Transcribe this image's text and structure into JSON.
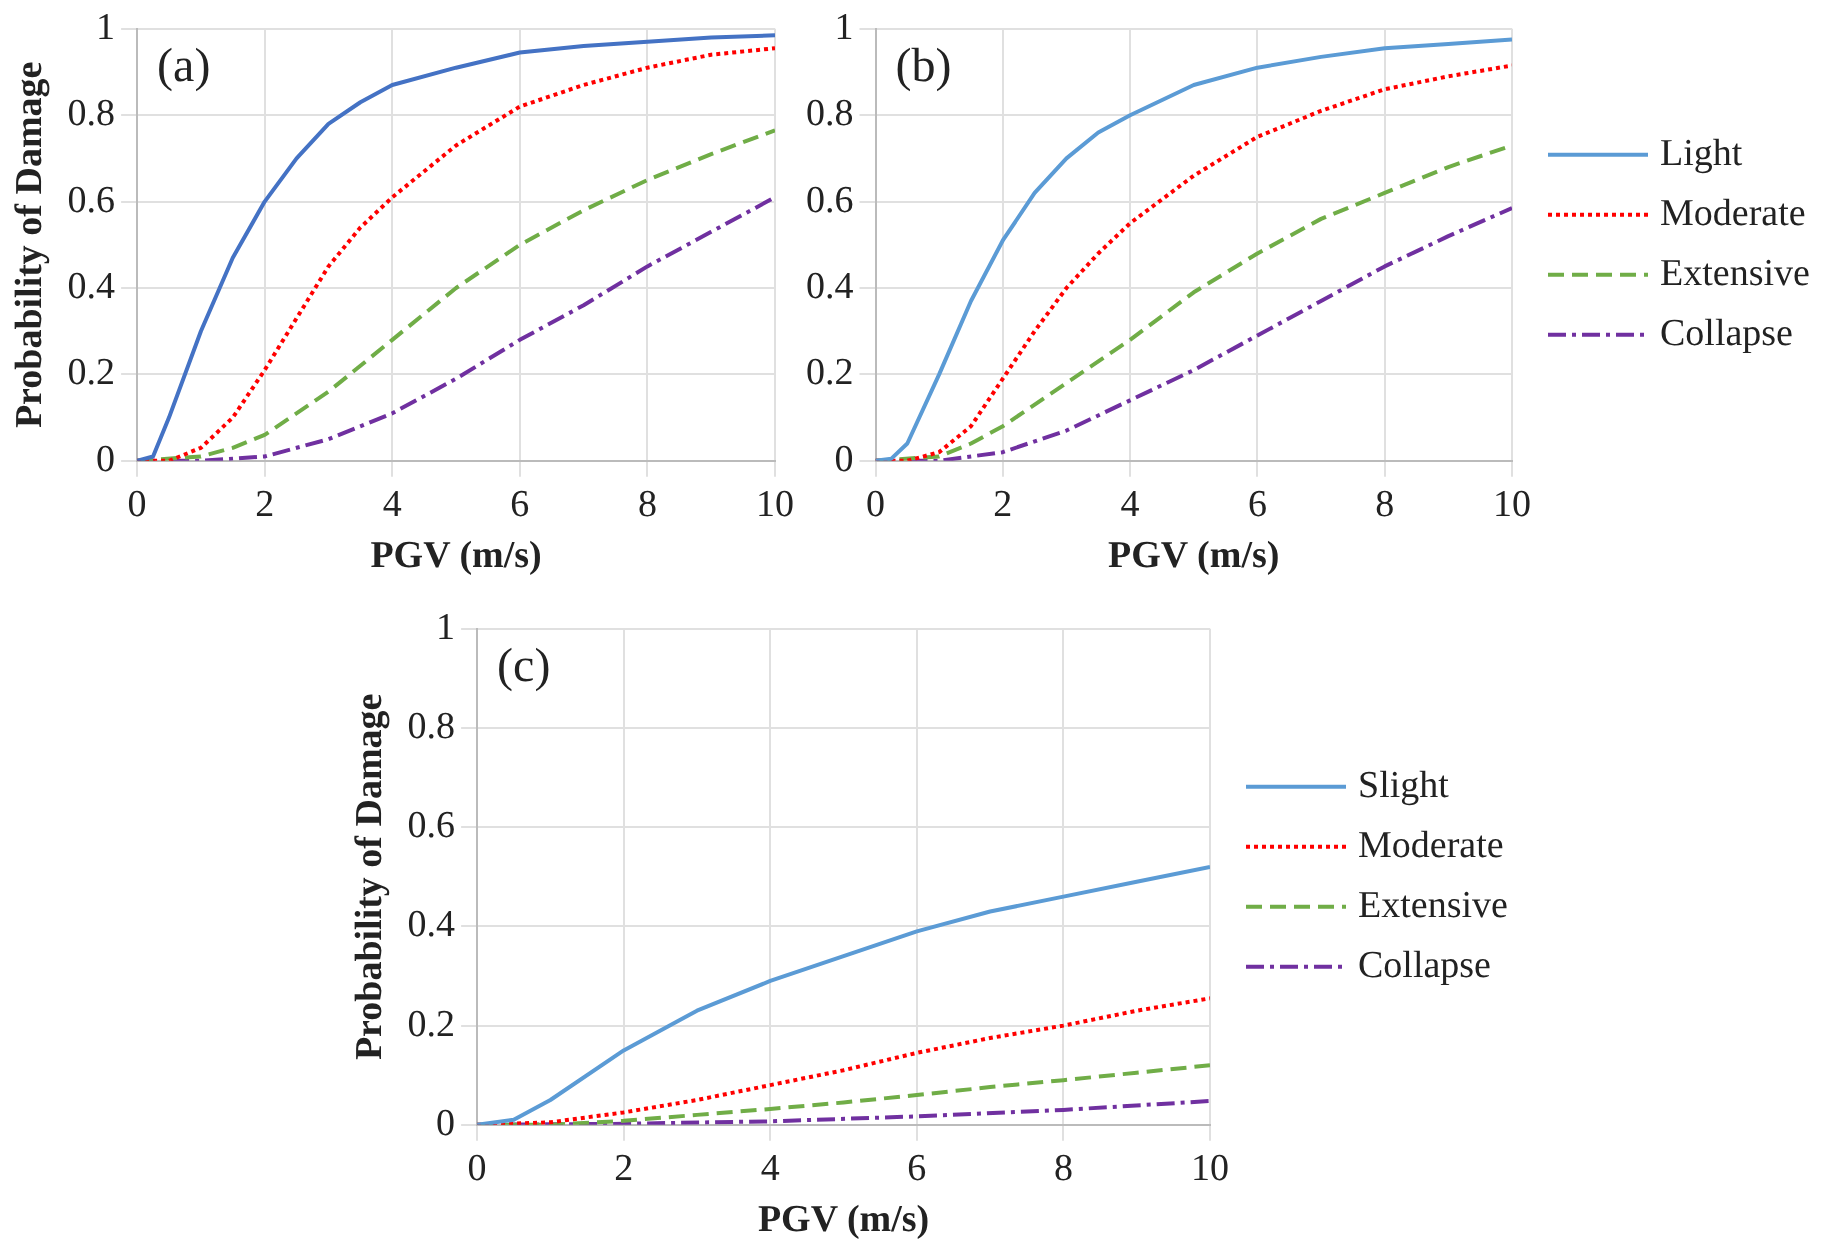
{
  "chart_data": [
    {
      "type": "line",
      "annotations": [
        "(a)"
      ],
      "xlabel": "PGV (m/s)",
      "ylabel": "Probability of Damage",
      "xlim": [
        0,
        10
      ],
      "ylim": [
        0,
        1
      ],
      "xticks": [
        0,
        2,
        4,
        6,
        8,
        10
      ],
      "yticks": [
        0,
        0.2,
        0.4,
        0.6,
        0.8,
        1
      ],
      "grid": true,
      "legend": false,
      "series": [
        {
          "color": "#4472c4",
          "line_style": "solid",
          "x": [
            0,
            0.25,
            0.5,
            1,
            1.5,
            2,
            2.5,
            3,
            3.5,
            4,
            5,
            6,
            7,
            8,
            9,
            10
          ],
          "values": [
            0,
            0.01,
            0.1,
            0.3,
            0.47,
            0.6,
            0.7,
            0.78,
            0.83,
            0.87,
            0.91,
            0.945,
            0.96,
            0.97,
            0.98,
            0.985
          ]
        },
        {
          "color": "#ff0000",
          "line_style": "dotted",
          "x": [
            0,
            0.5,
            1,
            1.5,
            2,
            2.5,
            3,
            3.5,
            4,
            5,
            6,
            7,
            8,
            9,
            10
          ],
          "values": [
            0,
            0,
            0.03,
            0.1,
            0.21,
            0.33,
            0.45,
            0.54,
            0.61,
            0.73,
            0.82,
            0.87,
            0.91,
            0.94,
            0.955
          ]
        },
        {
          "color": "#70ad47",
          "line_style": "dashed",
          "x": [
            0,
            1,
            1.5,
            2,
            3,
            4,
            5,
            6,
            7,
            8,
            9,
            10
          ],
          "values": [
            0,
            0.01,
            0.03,
            0.06,
            0.16,
            0.28,
            0.4,
            0.5,
            0.58,
            0.65,
            0.71,
            0.765
          ]
        },
        {
          "color": "#7030a0",
          "line_style": "dashdot",
          "x": [
            0,
            1,
            2,
            3,
            4,
            5,
            6,
            7,
            8,
            9,
            10
          ],
          "values": [
            0,
            0,
            0.01,
            0.05,
            0.11,
            0.19,
            0.28,
            0.36,
            0.45,
            0.53,
            0.61
          ]
        }
      ]
    },
    {
      "type": "line",
      "annotations": [
        "(b)"
      ],
      "xlabel": "PGV (m/s)",
      "xlim": [
        0,
        10
      ],
      "ylim": [
        0,
        1
      ],
      "xticks": [
        0,
        2,
        4,
        6,
        8,
        10
      ],
      "yticks": [
        0,
        0.2,
        0.4,
        0.6,
        0.8,
        1
      ],
      "grid": true,
      "legend": "right",
      "series": [
        {
          "name": "Light",
          "color": "#5b9bd5",
          "line_style": "solid",
          "x": [
            0,
            0.25,
            0.5,
            1,
            1.5,
            2,
            2.5,
            3,
            3.5,
            4,
            5,
            6,
            7,
            8,
            9,
            10
          ],
          "values": [
            0,
            0.005,
            0.04,
            0.2,
            0.37,
            0.51,
            0.62,
            0.7,
            0.76,
            0.8,
            0.87,
            0.91,
            0.935,
            0.955,
            0.965,
            0.975
          ]
        },
        {
          "name": "Moderate",
          "color": "#ff0000",
          "line_style": "dotted",
          "x": [
            0,
            0.5,
            1,
            1.5,
            2,
            2.5,
            3,
            3.5,
            4,
            5,
            6,
            7,
            8,
            9,
            10
          ],
          "values": [
            0,
            0,
            0.02,
            0.08,
            0.19,
            0.3,
            0.4,
            0.48,
            0.55,
            0.66,
            0.75,
            0.81,
            0.86,
            0.89,
            0.915
          ]
        },
        {
          "name": "Extensive",
          "color": "#70ad47",
          "line_style": "dashed",
          "x": [
            0,
            1,
            1.5,
            2,
            3,
            4,
            5,
            6,
            7,
            8,
            9,
            10
          ],
          "values": [
            0,
            0.01,
            0.04,
            0.08,
            0.18,
            0.28,
            0.39,
            0.48,
            0.56,
            0.62,
            0.68,
            0.73
          ]
        },
        {
          "name": "Collapse",
          "color": "#7030a0",
          "line_style": "dashdot",
          "x": [
            0,
            1,
            2,
            3,
            4,
            5,
            6,
            7,
            8,
            9,
            10
          ],
          "values": [
            0,
            0,
            0.02,
            0.07,
            0.14,
            0.21,
            0.29,
            0.37,
            0.45,
            0.52,
            0.585
          ]
        }
      ]
    },
    {
      "type": "line",
      "annotations": [
        "(c)"
      ],
      "xlabel": "PGV (m/s)",
      "ylabel": "Probability of Damage",
      "xlim": [
        0,
        10
      ],
      "ylim": [
        0,
        1
      ],
      "xticks": [
        0,
        2,
        4,
        6,
        8,
        10
      ],
      "yticks": [
        0,
        0.2,
        0.4,
        0.6,
        0.8,
        1
      ],
      "grid": true,
      "legend": "right",
      "series": [
        {
          "name": "Slight",
          "color": "#5b9bd5",
          "line_style": "solid",
          "x": [
            0,
            0.5,
            1,
            2,
            3,
            4,
            5,
            6,
            7,
            8,
            9,
            10
          ],
          "values": [
            0,
            0.01,
            0.05,
            0.15,
            0.23,
            0.29,
            0.34,
            0.39,
            0.43,
            0.46,
            0.49,
            0.52
          ]
        },
        {
          "name": "Moderate",
          "color": "#ff0000",
          "line_style": "dotted",
          "x": [
            0,
            1,
            2,
            3,
            4,
            5,
            6,
            7,
            8,
            9,
            10
          ],
          "values": [
            0,
            0.005,
            0.025,
            0.05,
            0.08,
            0.11,
            0.145,
            0.175,
            0.2,
            0.23,
            0.255
          ]
        },
        {
          "name": "Extensive",
          "color": "#70ad47",
          "line_style": "dashed",
          "x": [
            0,
            1,
            2,
            3,
            4,
            5,
            6,
            7,
            8,
            9,
            10
          ],
          "values": [
            0,
            0,
            0.008,
            0.02,
            0.032,
            0.045,
            0.06,
            0.076,
            0.09,
            0.105,
            0.12
          ]
        },
        {
          "name": "Collapse",
          "color": "#7030a0",
          "line_style": "dashdot",
          "x": [
            0,
            2,
            4,
            6,
            8,
            10
          ],
          "values": [
            0,
            0.002,
            0.007,
            0.017,
            0.03,
            0.048
          ]
        }
      ]
    }
  ]
}
